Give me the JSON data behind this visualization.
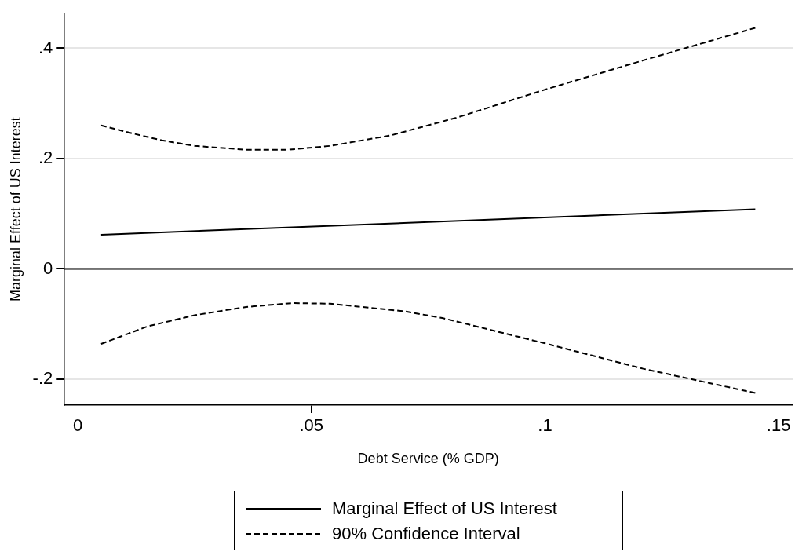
{
  "chart_data": {
    "type": "line",
    "xlabel": "Debt Service (% GDP)",
    "ylabel": "Marginal Effect of US Interest",
    "xlim": [
      -0.003,
      0.153
    ],
    "xticks": [
      {
        "value": 0,
        "label": "0"
      },
      {
        "value": 0.05,
        "label": ".05"
      },
      {
        "value": 0.1,
        "label": ".1"
      },
      {
        "value": 0.15,
        "label": ".15"
      }
    ],
    "ylim": [
      -0.247,
      0.463
    ],
    "yticks": [
      {
        "value": -0.2,
        "label": "-.2"
      },
      {
        "value": 0,
        "label": "0"
      },
      {
        "value": 0.2,
        "label": ".2"
      },
      {
        "value": 0.4,
        "label": ".4"
      }
    ],
    "grid": "y",
    "legend": "bottom",
    "marker": "none",
    "ref_lines": [
      {
        "axis": "y",
        "value": 0,
        "color": "#000000"
      }
    ],
    "series": [
      {
        "name": "Marginal Effect of US Interest",
        "color": "#000000",
        "line_style": "solid",
        "x": [
          0.005,
          0.145
        ],
        "values": [
          0.062,
          0.108
        ]
      },
      {
        "name": "90% Confidence Interval",
        "color": "#000000",
        "line_style": "dashed",
        "x": [
          0.005,
          0.012,
          0.018,
          0.025,
          0.036,
          0.045,
          0.054,
          0.067,
          0.081,
          0.1,
          0.121,
          0.145
        ],
        "values": [
          0.26,
          0.245,
          0.233,
          0.223,
          0.216,
          0.216,
          0.223,
          0.242,
          0.274,
          0.325,
          0.378,
          0.437
        ]
      },
      {
        "color": "#000000",
        "line_style": "dashed",
        "x": [
          0.005,
          0.015,
          0.025,
          0.036,
          0.046,
          0.054,
          0.07,
          0.078,
          0.1,
          0.121,
          0.145
        ],
        "values": [
          -0.136,
          -0.104,
          -0.084,
          -0.069,
          -0.062,
          -0.063,
          -0.077,
          -0.089,
          -0.135,
          -0.181,
          -0.225
        ]
      }
    ]
  }
}
